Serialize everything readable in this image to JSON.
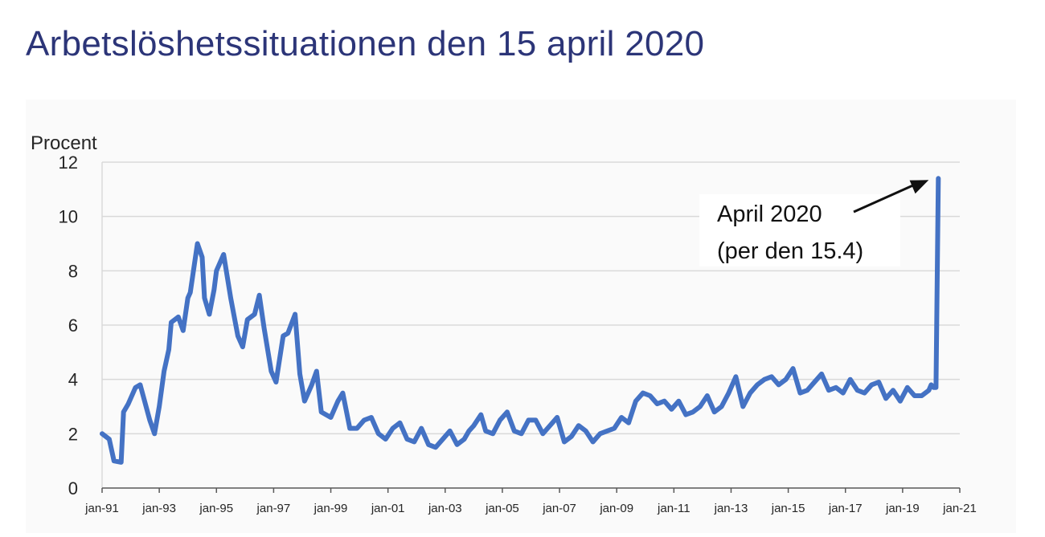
{
  "page": {
    "title": "Arbetslöshetssituationen den 15 april 2020"
  },
  "colors": {
    "title": "#2c3578",
    "line": "#4472c4",
    "grid": "#d9d9d9",
    "axis": "#595959",
    "text": "#262626"
  },
  "chart_data": {
    "type": "line",
    "title": "",
    "xlabel": "",
    "ylabel": "Procent",
    "ylim": [
      0,
      12
    ],
    "yticks": [
      0,
      2,
      4,
      6,
      8,
      10,
      12
    ],
    "xlim": [
      "1991-01",
      "2021-01"
    ],
    "xticks": [
      "jan-91",
      "jan-93",
      "jan-95",
      "jan-97",
      "jan-99",
      "jan-01",
      "jan-03",
      "jan-05",
      "jan-07",
      "jan-09",
      "jan-11",
      "jan-13",
      "jan-15",
      "jan-17",
      "jan-19",
      "jan-21"
    ],
    "grid": "horizontal",
    "legend": "none",
    "annotation": {
      "line1": "April 2020",
      "line2": "(per den 15.4)",
      "arrow_target": [
        "2020-04",
        11.4
      ]
    },
    "series": [
      {
        "x": [
          "1991-01",
          "1991-04",
          "1991-06",
          "1991-09",
          "1991-10",
          "1991-12",
          "1992-03",
          "1992-05",
          "1992-09",
          "1992-11",
          "1993-01",
          "1993-03",
          "1993-05",
          "1993-06",
          "1993-09",
          "1993-11",
          "1994-01",
          "1994-02",
          "1994-05",
          "1994-07",
          "1994-08",
          "1994-10",
          "1994-12",
          "1995-01",
          "1995-04",
          "1995-07",
          "1995-10",
          "1995-12",
          "1996-02",
          "1996-05",
          "1996-07",
          "1996-09",
          "1996-12",
          "1997-02",
          "1997-05",
          "1997-07",
          "1997-10",
          "1997-12",
          "1998-02",
          "1998-05",
          "1998-07",
          "1998-09",
          "1999-01",
          "1999-04",
          "1999-06",
          "1999-09",
          "1999-12",
          "2000-03",
          "2000-06",
          "2000-09",
          "2000-12",
          "2001-03",
          "2001-06",
          "2001-09",
          "2001-12",
          "2002-03",
          "2002-06",
          "2002-09",
          "2002-12",
          "2003-03",
          "2003-06",
          "2003-09",
          "2003-11",
          "2004-01",
          "2004-04",
          "2004-06",
          "2004-09",
          "2004-12",
          "2005-03",
          "2005-06",
          "2005-09",
          "2005-12",
          "2006-03",
          "2006-06",
          "2006-09",
          "2006-12",
          "2007-03",
          "2007-06",
          "2007-09",
          "2007-12",
          "2008-03",
          "2008-06",
          "2008-09",
          "2008-12",
          "2009-03",
          "2009-06",
          "2009-09",
          "2009-12",
          "2010-03",
          "2010-06",
          "2010-09",
          "2010-12",
          "2011-03",
          "2011-06",
          "2011-09",
          "2011-12",
          "2012-03",
          "2012-06",
          "2012-09",
          "2012-12",
          "2013-03",
          "2013-06",
          "2013-09",
          "2013-12",
          "2014-03",
          "2014-06",
          "2014-09",
          "2014-12",
          "2015-03",
          "2015-06",
          "2015-09",
          "2015-12",
          "2016-03",
          "2016-06",
          "2016-09",
          "2016-12",
          "2017-03",
          "2017-06",
          "2017-09",
          "2017-12",
          "2018-03",
          "2018-06",
          "2018-09",
          "2018-12",
          "2019-03",
          "2019-06",
          "2019-09",
          "2019-12",
          "2020-01",
          "2020-02",
          "2020-03",
          "2020-04"
        ],
        "values": [
          2.0,
          1.8,
          1.0,
          0.95,
          2.8,
          3.1,
          3.7,
          3.8,
          2.5,
          2.0,
          3.0,
          4.3,
          5.1,
          6.1,
          6.3,
          5.8,
          7.0,
          7.2,
          9.0,
          8.5,
          7.0,
          6.4,
          7.3,
          8.0,
          8.6,
          7.0,
          5.6,
          5.2,
          6.2,
          6.4,
          7.1,
          5.9,
          4.3,
          3.9,
          5.6,
          5.7,
          6.4,
          4.2,
          3.2,
          3.8,
          4.3,
          2.8,
          2.6,
          3.2,
          3.5,
          2.2,
          2.2,
          2.5,
          2.6,
          2.0,
          1.8,
          2.2,
          2.4,
          1.8,
          1.7,
          2.2,
          1.6,
          1.5,
          1.8,
          2.1,
          1.6,
          1.8,
          2.1,
          2.3,
          2.7,
          2.1,
          2.0,
          2.5,
          2.8,
          2.1,
          2.0,
          2.5,
          2.5,
          2.0,
          2.3,
          2.6,
          1.7,
          1.9,
          2.3,
          2.1,
          1.7,
          2.0,
          2.1,
          2.2,
          2.6,
          2.4,
          3.2,
          3.5,
          3.4,
          3.1,
          3.2,
          2.9,
          3.2,
          2.7,
          2.8,
          3.0,
          3.4,
          2.8,
          3.0,
          3.5,
          4.1,
          3.0,
          3.5,
          3.8,
          4.0,
          4.1,
          3.8,
          4.0,
          4.4,
          3.5,
          3.6,
          3.9,
          4.2,
          3.6,
          3.7,
          3.5,
          4.0,
          3.6,
          3.5,
          3.8,
          3.9,
          3.3,
          3.6,
          3.2,
          3.7,
          3.4,
          3.4,
          3.6,
          3.8,
          3.7,
          3.7,
          11.4
        ]
      }
    ]
  }
}
